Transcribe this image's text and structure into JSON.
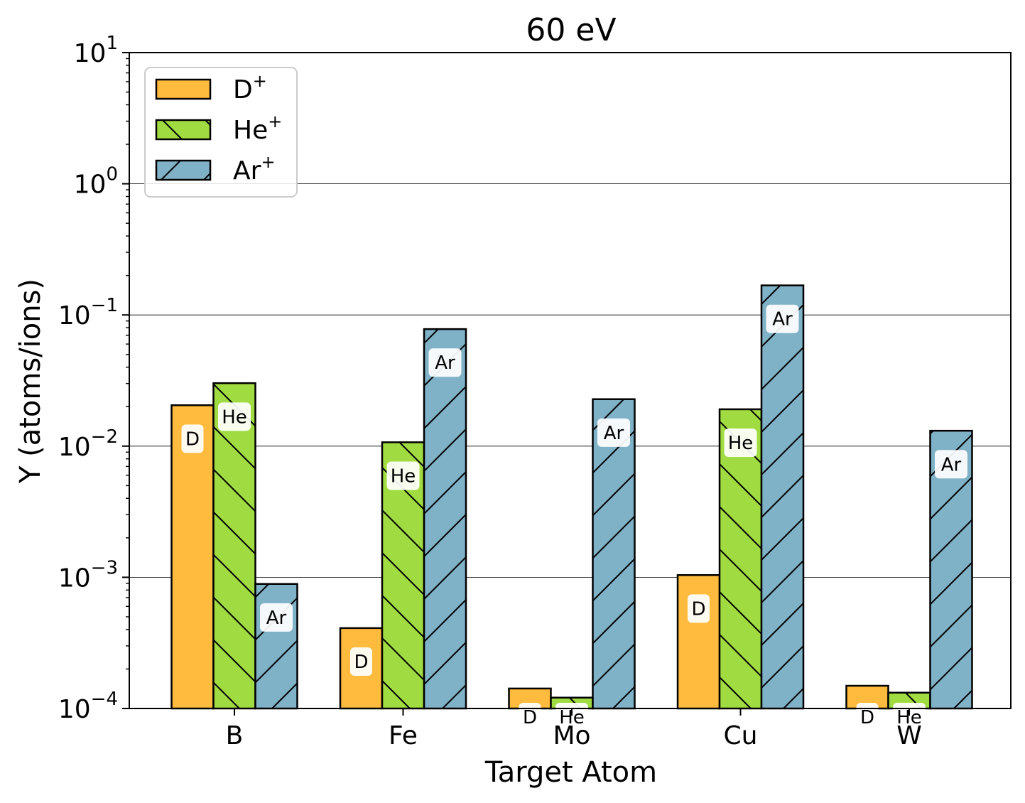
{
  "chart_data": {
    "type": "bar",
    "title": "60 eV",
    "xlabel": "Target Atom",
    "ylabel": "Y (atoms/ions)",
    "yscale": "log",
    "ylim": [
      0.0001,
      10
    ],
    "categories": [
      "B",
      "Fe",
      "Mo",
      "Cu",
      "W"
    ],
    "yticks": [
      {
        "value": 0.0001,
        "base": "10",
        "exp": "−4"
      },
      {
        "value": 0.001,
        "base": "10",
        "exp": "−3"
      },
      {
        "value": 0.01,
        "base": "10",
        "exp": "−2"
      },
      {
        "value": 0.1,
        "base": "10",
        "exp": "−1"
      },
      {
        "value": 1,
        "base": "10",
        "exp": "0"
      },
      {
        "value": 10,
        "base": "10",
        "exp": "1"
      }
    ],
    "grid": "horizontal major",
    "legend_position": "top-left",
    "series": [
      {
        "name": "D",
        "charge": "+",
        "bar_label": "D",
        "color": "#FFBB3D",
        "hatch": "none",
        "values": [
          0.0205,
          0.00041,
          0.000142,
          0.00104,
          0.000149
        ]
      },
      {
        "name": "He",
        "charge": "+",
        "bar_label": "He",
        "color": "#A0DC41",
        "hatch": "backslash",
        "values": [
          0.0302,
          0.0107,
          0.000121,
          0.0191,
          0.000132
        ]
      },
      {
        "name": "Ar",
        "charge": "+",
        "bar_label": "Ar",
        "color": "#7FB1C7",
        "hatch": "slash",
        "values": [
          0.00089,
          0.078,
          0.0228,
          0.168,
          0.0131
        ]
      }
    ]
  }
}
